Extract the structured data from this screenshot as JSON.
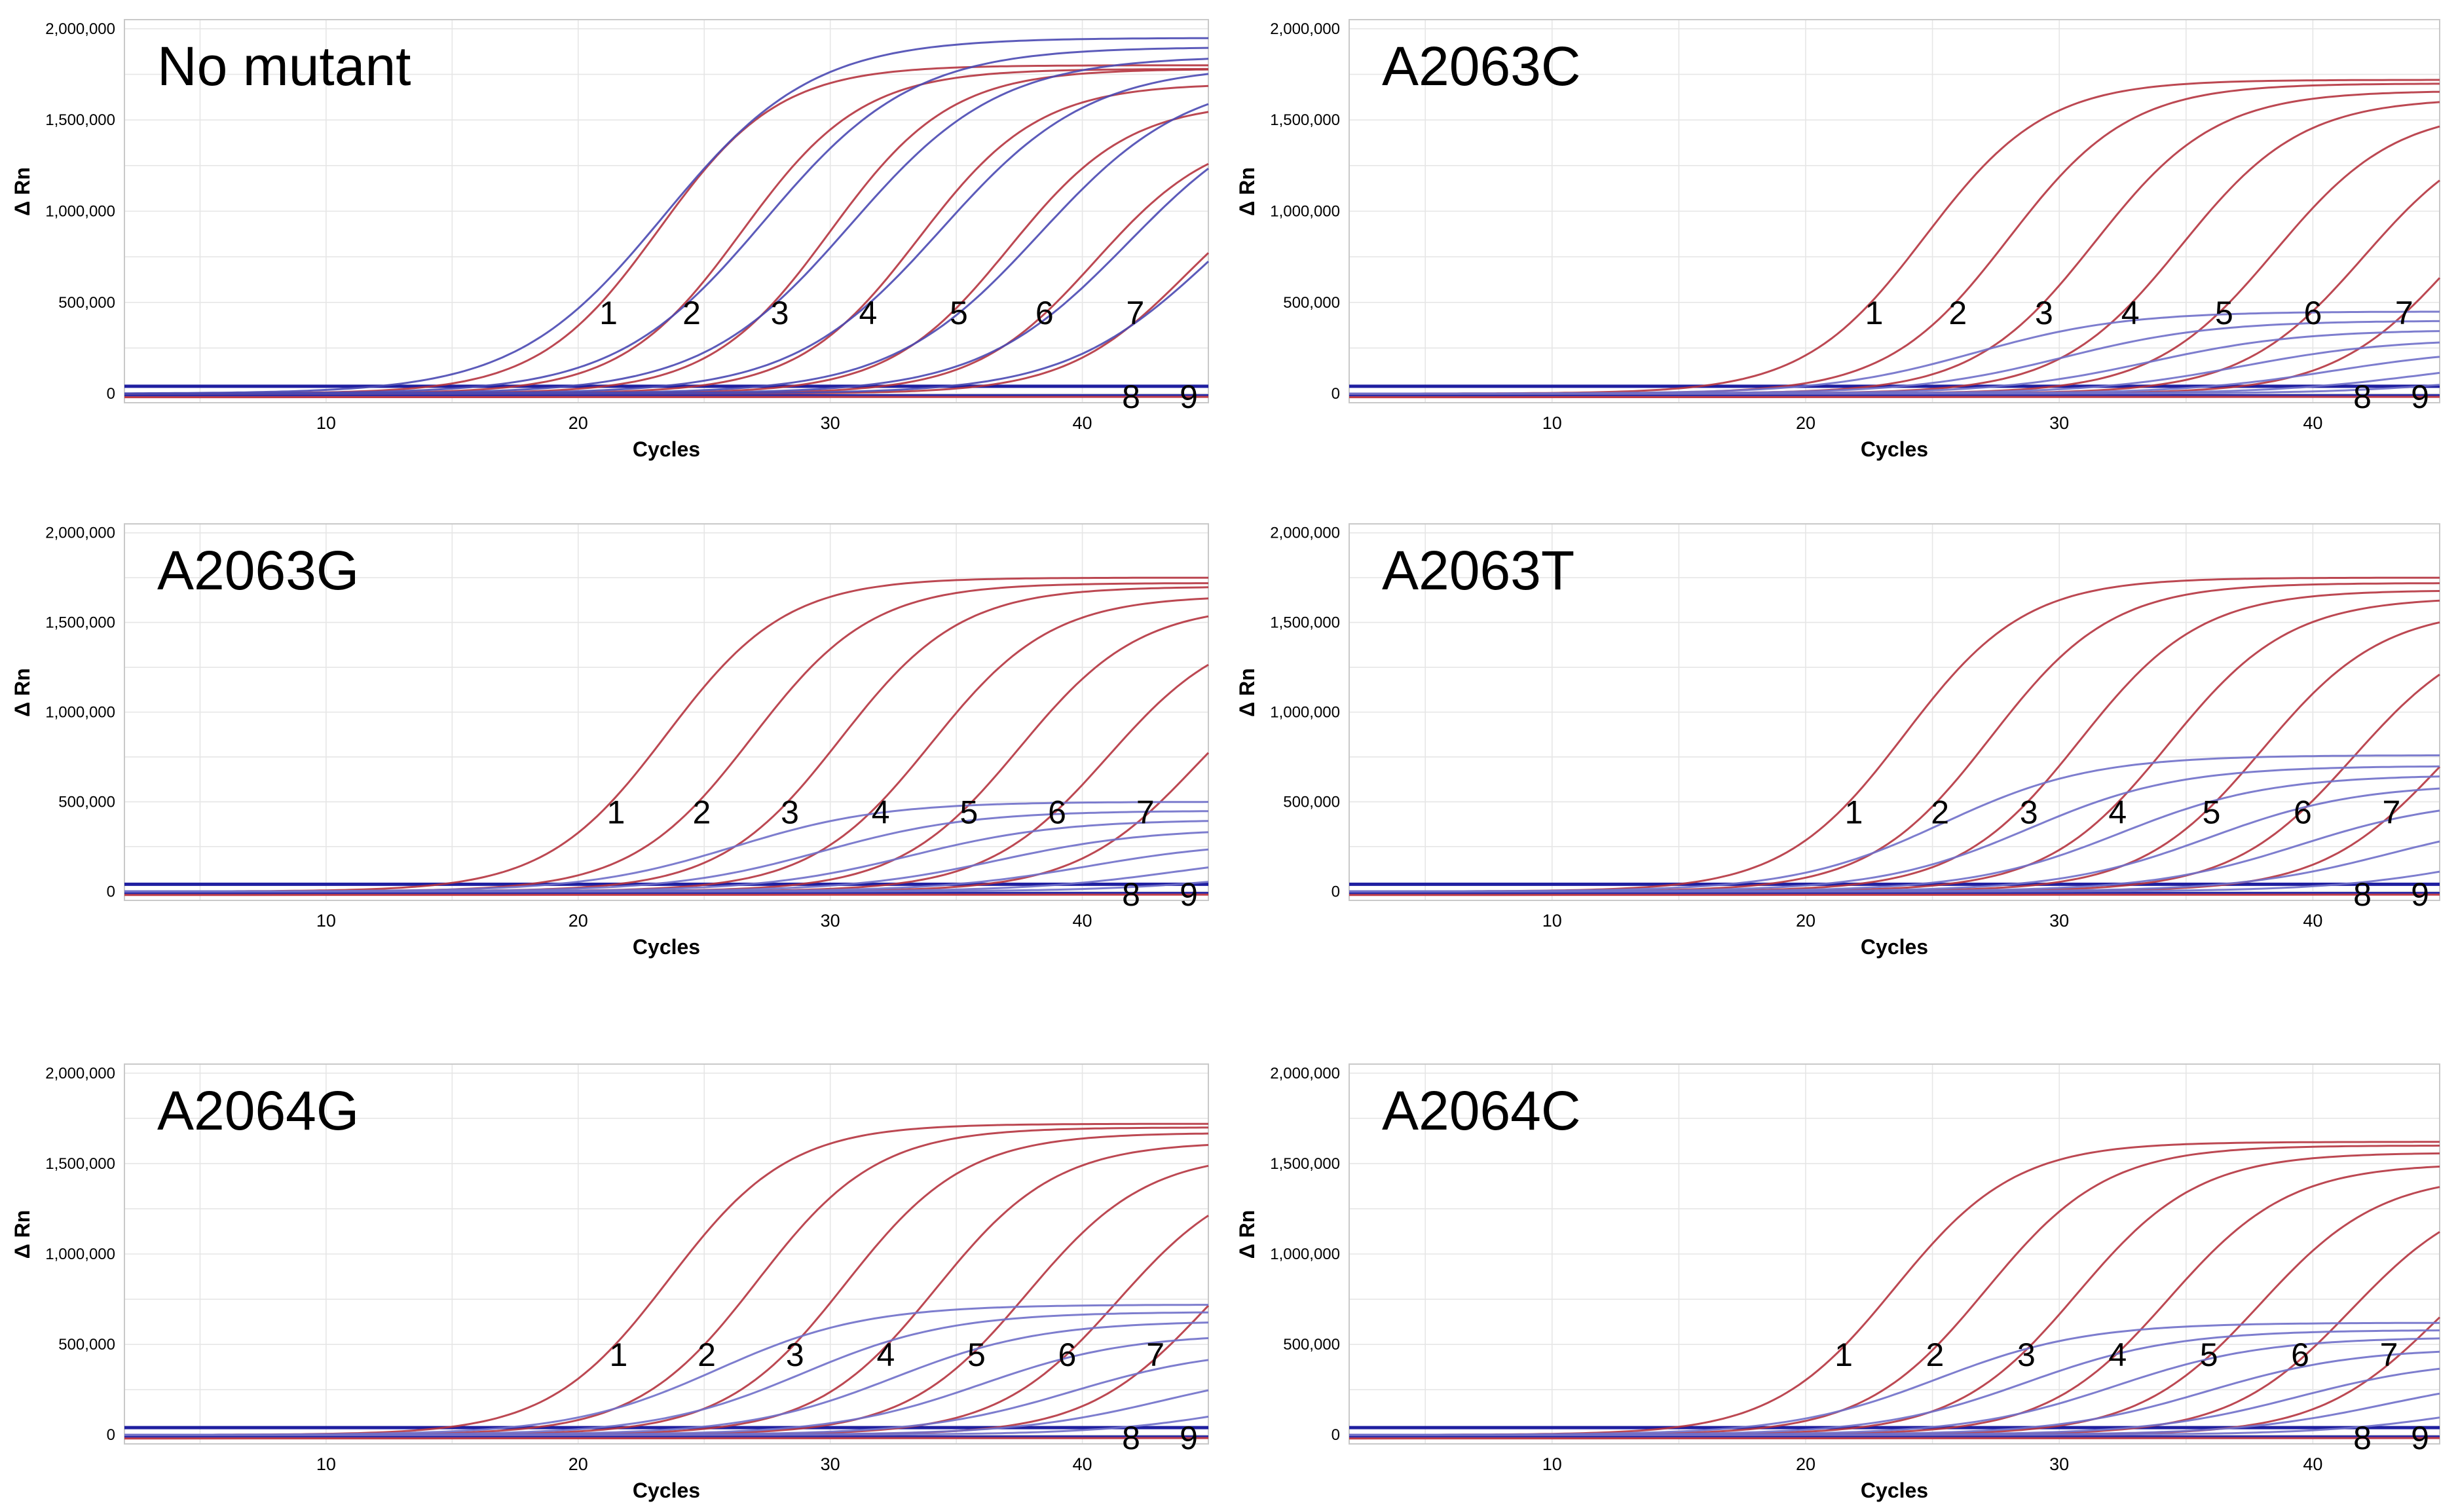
{
  "chart_data": [
    {
      "type": "line",
      "title": "No mutant",
      "xlabel": "Cycles",
      "ylabel": "Δ Rn",
      "xlim": [
        2,
        45
      ],
      "ylim": [
        -50000,
        2050000
      ],
      "xticks": [
        "10",
        "20",
        "30",
        "40"
      ],
      "yticks": [
        "2,000,000",
        "1,500,000",
        "1,000,000",
        "500,000",
        "0"
      ],
      "grid": true,
      "threshold": 40000,
      "curve_labels": [
        "1",
        "2",
        "3",
        "4",
        "5",
        "6",
        "7",
        "8",
        "9"
      ],
      "series": [
        {
          "color": "#b5343f",
          "ct": [
            20.0,
            23.3,
            26.8,
            30.3,
            33.9,
            37.3,
            40.9
          ],
          "plateau": [
            1800000,
            1780000,
            1780000,
            1700000,
            1600000,
            1450000,
            1300000
          ]
        },
        {
          "color": "#4a49b2",
          "ct": [
            20.2,
            24.2,
            27.6,
            31.2,
            35.1,
            38.6,
            42.0
          ],
          "plateau": [
            1950000,
            1900000,
            1850000,
            1800000,
            1750000,
            1650000,
            1500000
          ]
        }
      ]
    },
    {
      "type": "line",
      "title": "A2063C",
      "xlabel": "Cycles",
      "ylabel": "Δ Rn",
      "xlim": [
        2,
        45
      ],
      "ylim": [
        -50000,
        2050000
      ],
      "xticks": [
        "10",
        "20",
        "30",
        "40"
      ],
      "yticks": [
        "2,000,000",
        "1,500,000",
        "1,000,000",
        "500,000",
        "0"
      ],
      "grid": true,
      "threshold": 40000,
      "curve_labels": [
        "1",
        "2",
        "3",
        "4",
        "5",
        "6",
        "7",
        "8",
        "9"
      ],
      "series": [
        {
          "color": "#b5343f",
          "ct": [
            21.5,
            24.8,
            28.2,
            31.6,
            35.3,
            38.8,
            42.4
          ],
          "plateau": [
            1720000,
            1700000,
            1660000,
            1620000,
            1560000,
            1500000,
            1450000
          ]
        },
        {
          "color": "#6f6fc9",
          "ct": [
            23.5,
            27.0,
            30.4,
            34.0,
            37.6,
            41.0,
            44.0
          ],
          "plateau": [
            450000,
            400000,
            350000,
            300000,
            250000,
            200000,
            150000
          ]
        }
      ]
    },
    {
      "type": "line",
      "title": "A2063G",
      "xlabel": "Cycles",
      "ylabel": "Δ Rn",
      "xlim": [
        2,
        45
      ],
      "ylim": [
        -50000,
        2050000
      ],
      "xticks": [
        "10",
        "20",
        "30",
        "40"
      ],
      "yticks": [
        "2,000,000",
        "1,500,000",
        "1,000,000",
        "500,000",
        "0"
      ],
      "grid": true,
      "threshold": 40000,
      "curve_labels": [
        "1",
        "2",
        "3",
        "4",
        "5",
        "6",
        "7",
        "8",
        "9"
      ],
      "series": [
        {
          "color": "#b5343f",
          "ct": [
            20.3,
            23.7,
            27.2,
            30.8,
            34.3,
            37.8,
            41.3
          ],
          "plateau": [
            1750000,
            1720000,
            1700000,
            1650000,
            1600000,
            1500000,
            1400000
          ]
        },
        {
          "color": "#6f6fc9",
          "ct": [
            23.0,
            26.5,
            30.0,
            33.5,
            37.0,
            40.5,
            43.8
          ],
          "plateau": [
            500000,
            450000,
            400000,
            350000,
            280000,
            220000,
            160000
          ]
        }
      ]
    },
    {
      "type": "line",
      "title": "A2063T",
      "xlabel": "Cycles",
      "ylabel": "Δ Rn",
      "xlim": [
        2,
        45
      ],
      "ylim": [
        -50000,
        2050000
      ],
      "xticks": [
        "10",
        "20",
        "30",
        "40"
      ],
      "yticks": [
        "2,000,000",
        "1,500,000",
        "1,000,000",
        "500,000",
        "0"
      ],
      "grid": true,
      "threshold": 40000,
      "curve_labels": [
        "1",
        "2",
        "3",
        "4",
        "5",
        "6",
        "7",
        "8",
        "9"
      ],
      "series": [
        {
          "color": "#b5343f",
          "ct": [
            20.7,
            24.1,
            27.6,
            31.1,
            34.8,
            38.4,
            41.9
          ],
          "plateau": [
            1750000,
            1720000,
            1680000,
            1640000,
            1580000,
            1500000,
            1420000
          ]
        },
        {
          "color": "#6f6fc9",
          "ct": [
            22.2,
            25.6,
            29.2,
            32.7,
            36.3,
            39.8,
            43.4
          ],
          "plateau": [
            760000,
            700000,
            650000,
            600000,
            520000,
            420000,
            300000
          ]
        }
      ]
    },
    {
      "type": "line",
      "title": "A2064G",
      "xlabel": "Cycles",
      "ylabel": "Δ Rn",
      "xlim": [
        2,
        45
      ],
      "ylim": [
        -50000,
        2050000
      ],
      "xticks": [
        "10",
        "20",
        "30",
        "40"
      ],
      "yticks": [
        "2,000,000",
        "1,500,000",
        "1,000,000",
        "500,000",
        "0"
      ],
      "grid": true,
      "threshold": 40000,
      "curve_labels": [
        "1",
        "2",
        "3",
        "4",
        "5",
        "6",
        "7",
        "8",
        "9"
      ],
      "series": [
        {
          "color": "#b5343f",
          "ct": [
            20.4,
            23.9,
            27.4,
            31.0,
            34.6,
            38.2,
            41.7
          ],
          "plateau": [
            1720000,
            1700000,
            1670000,
            1620000,
            1560000,
            1480000,
            1400000
          ]
        },
        {
          "color": "#6f6fc9",
          "ct": [
            22.3,
            25.7,
            29.3,
            32.8,
            36.4,
            40.0,
            43.5
          ],
          "plateau": [
            720000,
            680000,
            630000,
            560000,
            480000,
            380000,
            280000
          ]
        }
      ]
    },
    {
      "type": "line",
      "title": "A2064C",
      "xlabel": "Cycles",
      "ylabel": "Δ Rn",
      "xlim": [
        2,
        45
      ],
      "ylim": [
        -50000,
        2050000
      ],
      "xticks": [
        "10",
        "20",
        "30",
        "40"
      ],
      "yticks": [
        "2,000,000",
        "1,500,000",
        "1,000,000",
        "500,000",
        "0"
      ],
      "grid": true,
      "threshold": 40000,
      "curve_labels": [
        "1",
        "2",
        "3",
        "4",
        "5",
        "6",
        "7",
        "8",
        "9"
      ],
      "series": [
        {
          "color": "#b5343f",
          "ct": [
            20.3,
            23.9,
            27.5,
            31.1,
            34.7,
            38.3,
            41.8
          ],
          "plateau": [
            1620000,
            1600000,
            1560000,
            1500000,
            1440000,
            1380000,
            1300000
          ]
        },
        {
          "color": "#6f6fc9",
          "ct": [
            22.0,
            25.5,
            29.0,
            32.6,
            36.2,
            39.7,
            43.2
          ],
          "plateau": [
            620000,
            580000,
            540000,
            480000,
            420000,
            340000,
            250000
          ]
        }
      ]
    }
  ]
}
